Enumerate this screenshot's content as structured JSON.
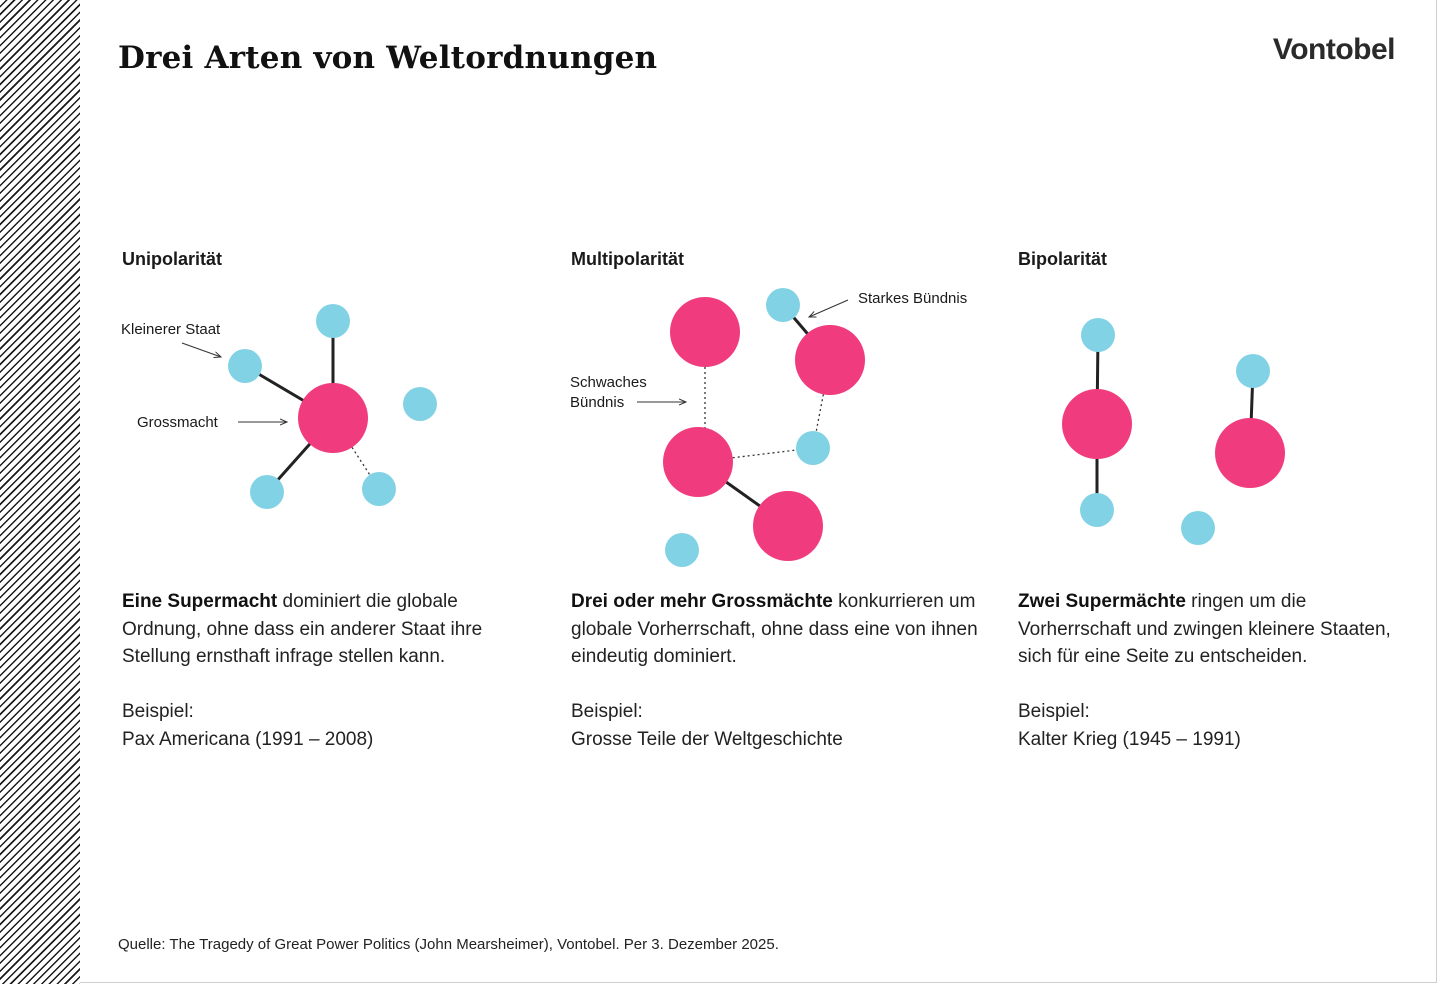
{
  "header": {
    "title": "Drei Arten von Weltordnungen",
    "logo": "Vontobel"
  },
  "colors": {
    "great_power": "#f03c7e",
    "small_state": "#82d2e6",
    "text": "#1a1a1a"
  },
  "panels": [
    {
      "heading": "Unipolarität",
      "labels": {
        "small": "Kleinerer Staat",
        "great": "Grossmacht"
      },
      "desc_bold": "Eine Supermacht",
      "desc_rest": " dominiert die globale Ordnung, ohne dass ein anderer Staat ihre Stellung ernsthaft infrage stellen kann.",
      "example_label": "Beispiel:",
      "example_value": "Pax Americana (1991 – 2008)"
    },
    {
      "heading": "Multipolarität",
      "labels": {
        "strong": "Starkes Bündnis",
        "weak_1": "Schwaches",
        "weak_2": "Bündnis"
      },
      "desc_bold": "Drei oder mehr Grossmächte",
      "desc_rest": " konkurrieren um globale Vorherrschaft, ohne dass eine von ihnen eindeutig dominiert.",
      "example_label": "Beispiel:",
      "example_value": "Grosse Teile der Weltgeschichte"
    },
    {
      "heading": "Bipolarität",
      "desc_bold": "Zwei Supermächte",
      "desc_rest": " ringen um die Vorherrschaft und zwingen kleinere Staaten, sich für eine Seite zu entscheiden.",
      "example_label": "Beispiel:",
      "example_value": "Kalter Krieg (1945 – 1991)"
    }
  ],
  "footer": {
    "source": "Quelle: The Tragedy of Great Power Politics (John Mearsheimer), Vontobel. Per 3. Dezember 2025."
  }
}
